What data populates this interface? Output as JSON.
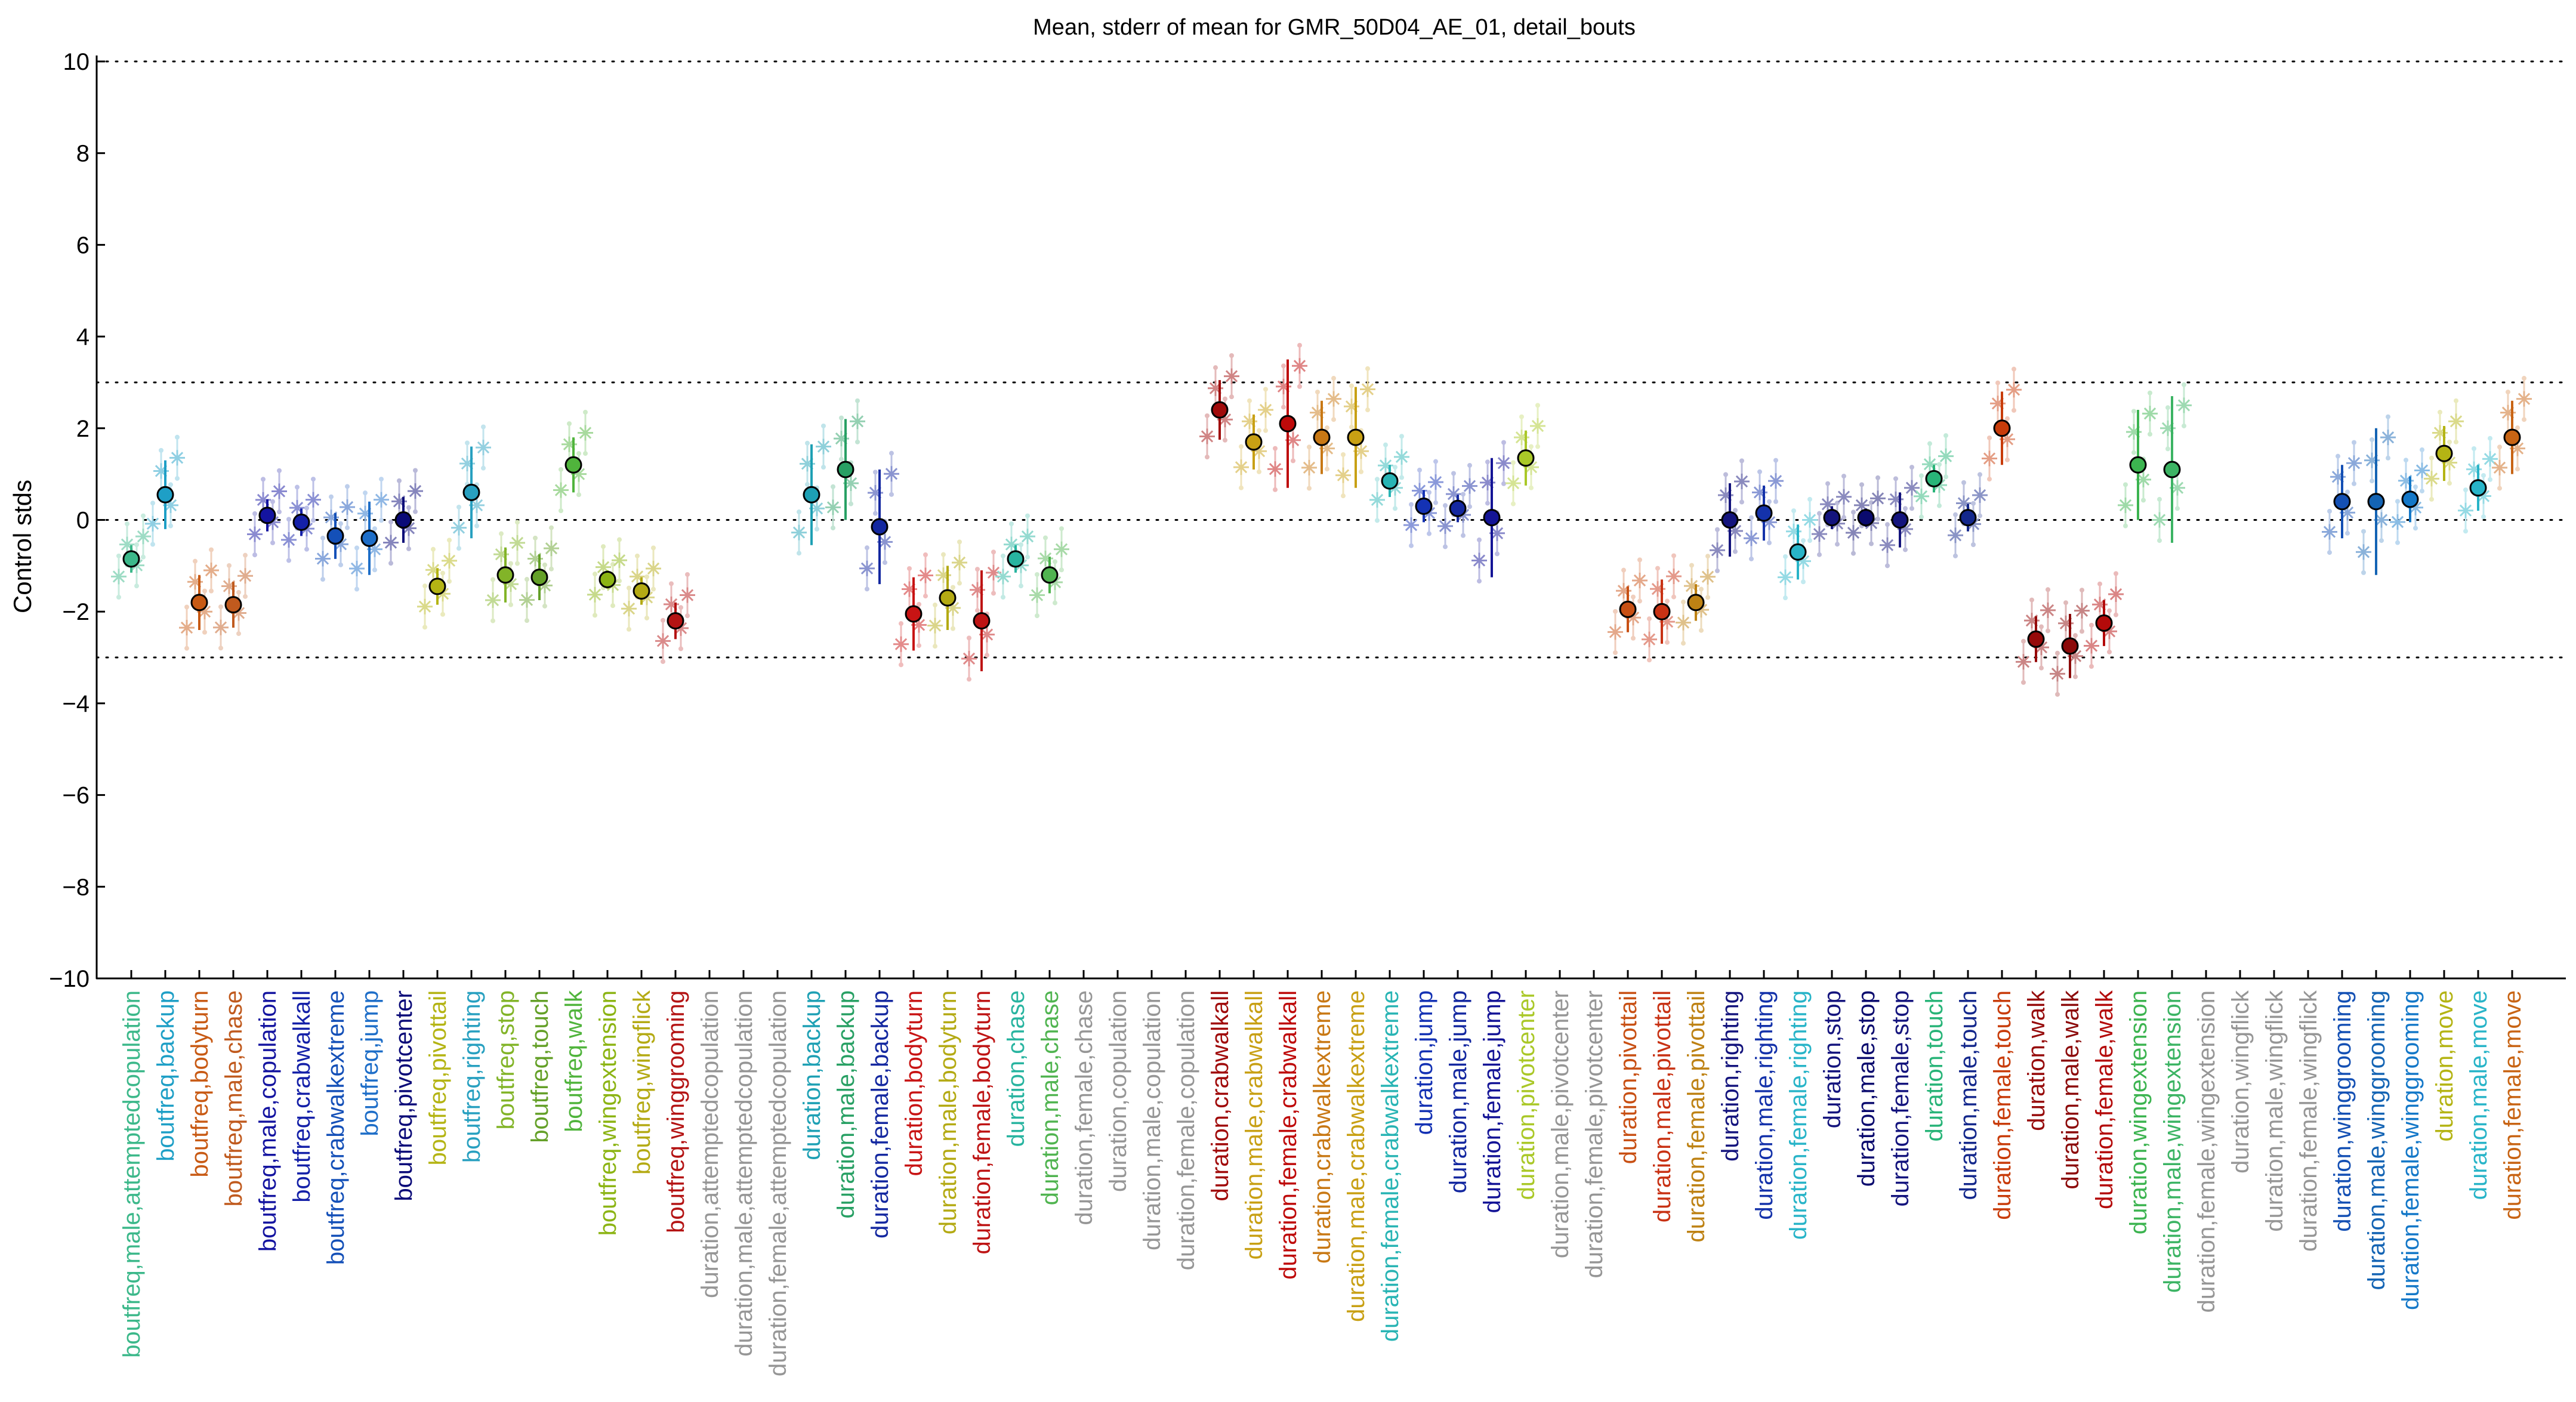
{
  "chart_data": {
    "type": "scatter",
    "title": "Mean, stderr of mean for GMR_50D04_AE_01, detail_bouts",
    "xlabel": "",
    "ylabel": "Control stds",
    "ylim": [
      -10,
      10
    ],
    "yticks": [
      -10,
      -8,
      -6,
      -4,
      -2,
      0,
      2,
      4,
      6,
      8,
      10
    ],
    "reference_lines": [
      10,
      3,
      0,
      -3,
      -10
    ],
    "grid": false,
    "legend": "none",
    "categories": [
      {
        "label": "boutfreq,male,attemptedcopulation",
        "color": "#3cb88a",
        "mean": -0.85,
        "err": 0.3,
        "kind": "main"
      },
      {
        "label": "boutfreq,backup",
        "color": "#1e9fc6",
        "mean": 0.55,
        "err": 0.75,
        "kind": "main"
      },
      {
        "label": "boutfreq,bodyturn",
        "color": "#c85a14",
        "mean": -1.8,
        "err": 0.6,
        "kind": "main"
      },
      {
        "label": "boutfreq,male,chase",
        "color": "#c05a1e",
        "mean": -1.85,
        "err": 0.5,
        "kind": "main"
      },
      {
        "label": "boutfreq,male,copulation",
        "color": "#1414a0",
        "mean": 0.1,
        "err": 0.35,
        "kind": "main"
      },
      {
        "label": "boutfreq,crabwalkall",
        "color": "#1420a8",
        "mean": -0.05,
        "err": 0.3,
        "kind": "main"
      },
      {
        "label": "boutfreq,crabwalkextreme",
        "color": "#1450b8",
        "mean": -0.35,
        "err": 0.5,
        "kind": "main"
      },
      {
        "label": "boutfreq,jump",
        "color": "#1e6ec8",
        "mean": -0.4,
        "err": 0.8,
        "kind": "main"
      },
      {
        "label": "boutfreq,pivotcenter",
        "color": "#0a0a78",
        "mean": 0.0,
        "err": 0.5,
        "kind": "main"
      },
      {
        "label": "boutfreq,pivottail",
        "color": "#b4b414",
        "mean": -1.45,
        "err": 0.4,
        "kind": "main"
      },
      {
        "label": "boutfreq,righting",
        "color": "#28a0c0",
        "mean": 0.6,
        "err": 1.0,
        "kind": "main"
      },
      {
        "label": "boutfreq,stop",
        "color": "#82b428",
        "mean": -1.2,
        "err": 0.6,
        "kind": "main"
      },
      {
        "label": "boutfreq,touch",
        "color": "#64a028",
        "mean": -1.25,
        "err": 0.5,
        "kind": "main"
      },
      {
        "label": "boutfreq,walk",
        "color": "#50b43c",
        "mean": 1.2,
        "err": 0.6,
        "kind": "main"
      },
      {
        "label": "boutfreq,wingextension",
        "color": "#8cb414",
        "mean": -1.3,
        "err": 0.2,
        "kind": "main"
      },
      {
        "label": "boutfreq,wingflick",
        "color": "#b4aa14",
        "mean": -1.55,
        "err": 0.3,
        "kind": "main"
      },
      {
        "label": "boutfreq,winggrooming",
        "color": "#b41414",
        "mean": -2.2,
        "err": 0.4,
        "kind": "main"
      },
      {
        "label": "duration,attemptedcopulation",
        "color": "#969696",
        "mean": null,
        "err": null,
        "kind": "none"
      },
      {
        "label": "duration,male,attemptedcopulation",
        "color": "#969696",
        "mean": null,
        "err": null,
        "kind": "none"
      },
      {
        "label": "duration,female,attemptedcopulation",
        "color": "#969696",
        "mean": null,
        "err": null,
        "kind": "none"
      },
      {
        "label": "duration,backup",
        "color": "#1ea0b4",
        "mean": 0.55,
        "err": 1.1,
        "kind": "main"
      },
      {
        "label": "duration,male,backup",
        "color": "#28a064",
        "mean": 1.1,
        "err": 1.1,
        "kind": "main"
      },
      {
        "label": "duration,female,backup",
        "color": "#1428a0",
        "mean": -0.15,
        "err": 1.25,
        "kind": "main"
      },
      {
        "label": "duration,bodyturn",
        "color": "#c81414",
        "mean": -2.05,
        "err": 0.8,
        "kind": "main"
      },
      {
        "label": "duration,male,bodyturn",
        "color": "#b4aa14",
        "mean": -1.7,
        "err": 0.7,
        "kind": "main"
      },
      {
        "label": "duration,female,bodyturn",
        "color": "#be1414",
        "mean": -2.2,
        "err": 1.1,
        "kind": "main"
      },
      {
        "label": "duration,chase",
        "color": "#28b4a0",
        "mean": -0.85,
        "err": 0.3,
        "kind": "main"
      },
      {
        "label": "duration,male,chase",
        "color": "#50b450",
        "mean": -1.2,
        "err": 0.4,
        "kind": "main"
      },
      {
        "label": "duration,female,chase",
        "color": "#969696",
        "mean": null,
        "err": null,
        "kind": "none"
      },
      {
        "label": "duration,copulation",
        "color": "#969696",
        "mean": null,
        "err": null,
        "kind": "none"
      },
      {
        "label": "duration,male,copulation",
        "color": "#969696",
        "mean": null,
        "err": null,
        "kind": "none"
      },
      {
        "label": "duration,female,copulation",
        "color": "#969696",
        "mean": null,
        "err": null,
        "kind": "none"
      },
      {
        "label": "duration,crabwalkall",
        "color": "#a00a0a",
        "mean": 2.4,
        "err": 0.65,
        "kind": "main"
      },
      {
        "label": "duration,male,crabwalkall",
        "color": "#c8a014",
        "mean": 1.7,
        "err": 0.6,
        "kind": "main"
      },
      {
        "label": "duration,female,crabwalkall",
        "color": "#be0a0a",
        "mean": 2.1,
        "err": 1.4,
        "kind": "main"
      },
      {
        "label": "duration,crabwalkextreme",
        "color": "#c87814",
        "mean": 1.8,
        "err": 0.8,
        "kind": "main"
      },
      {
        "label": "duration,male,crabwalkextreme",
        "color": "#c8a014",
        "mean": 1.8,
        "err": 1.1,
        "kind": "main"
      },
      {
        "label": "duration,female,crabwalkextreme",
        "color": "#28b4b4",
        "mean": 0.85,
        "err": 0.35,
        "kind": "main"
      },
      {
        "label": "duration,jump",
        "color": "#1432b4",
        "mean": 0.3,
        "err": 0.35,
        "kind": "main"
      },
      {
        "label": "duration,male,jump",
        "color": "#1428a0",
        "mean": 0.25,
        "err": 0.3,
        "kind": "main"
      },
      {
        "label": "duration,female,jump",
        "color": "#141496",
        "mean": 0.05,
        "err": 1.3,
        "kind": "main"
      },
      {
        "label": "duration,pivotcenter",
        "color": "#aac828",
        "mean": 1.35,
        "err": 0.6,
        "kind": "main"
      },
      {
        "label": "duration,male,pivotcenter",
        "color": "#969696",
        "mean": null,
        "err": null,
        "kind": "none"
      },
      {
        "label": "duration,female,pivotcenter",
        "color": "#969696",
        "mean": null,
        "err": null,
        "kind": "none"
      },
      {
        "label": "duration,pivottail",
        "color": "#c85014",
        "mean": -1.95,
        "err": 0.5,
        "kind": "main"
      },
      {
        "label": "duration,male,pivottail",
        "color": "#c83214",
        "mean": -2.0,
        "err": 0.7,
        "kind": "main"
      },
      {
        "label": "duration,female,pivottail",
        "color": "#be8214",
        "mean": -1.8,
        "err": 0.4,
        "kind": "main"
      },
      {
        "label": "duration,righting",
        "color": "#14147d",
        "mean": 0.0,
        "err": 0.8,
        "kind": "main"
      },
      {
        "label": "duration,male,righting",
        "color": "#1432aa",
        "mean": 0.15,
        "err": 0.6,
        "kind": "main"
      },
      {
        "label": "duration,female,righting",
        "color": "#28b4c8",
        "mean": -0.7,
        "err": 0.6,
        "kind": "main"
      },
      {
        "label": "duration,stop",
        "color": "#14147d",
        "mean": 0.05,
        "err": 0.25,
        "kind": "main"
      },
      {
        "label": "duration,male,stop",
        "color": "#0a0a6e",
        "mean": 0.05,
        "err": 0.2,
        "kind": "main"
      },
      {
        "label": "duration,female,stop",
        "color": "#14147d",
        "mean": 0.0,
        "err": 0.6,
        "kind": "main"
      },
      {
        "label": "duration,touch",
        "color": "#28b478",
        "mean": 0.9,
        "err": 0.3,
        "kind": "main"
      },
      {
        "label": "duration,male,touch",
        "color": "#14288c",
        "mean": 0.05,
        "err": 0.3,
        "kind": "main"
      },
      {
        "label": "duration,female,touch",
        "color": "#c83c0a",
        "mean": 2.0,
        "err": 0.8,
        "kind": "main"
      },
      {
        "label": "duration,walk",
        "color": "#960a0a",
        "mean": -2.6,
        "err": 0.5,
        "kind": "main"
      },
      {
        "label": "duration,male,walk",
        "color": "#8c0a0a",
        "mean": -2.75,
        "err": 0.7,
        "kind": "main"
      },
      {
        "label": "duration,female,walk",
        "color": "#b40a0a",
        "mean": -2.25,
        "err": 0.5,
        "kind": "main"
      },
      {
        "label": "duration,wingextension",
        "color": "#3cb450",
        "mean": 1.2,
        "err": 1.2,
        "kind": "main"
      },
      {
        "label": "duration,male,wingextension",
        "color": "#3cb464",
        "mean": 1.1,
        "err": 1.6,
        "kind": "main"
      },
      {
        "label": "duration,female,wingextension",
        "color": "#969696",
        "mean": null,
        "err": null,
        "kind": "none"
      },
      {
        "label": "duration,wingflick",
        "color": "#969696",
        "mean": null,
        "err": null,
        "kind": "none"
      },
      {
        "label": "duration,male,wingflick",
        "color": "#969696",
        "mean": null,
        "err": null,
        "kind": "none"
      },
      {
        "label": "duration,female,wingflick",
        "color": "#969696",
        "mean": null,
        "err": null,
        "kind": "none"
      },
      {
        "label": "duration,winggrooming",
        "color": "#1450b4",
        "mean": 0.4,
        "err": 0.8,
        "kind": "main"
      },
      {
        "label": "duration,male,winggrooming",
        "color": "#1464b4",
        "mean": 0.4,
        "err": 1.6,
        "kind": "main"
      },
      {
        "label": "duration,female,winggrooming",
        "color": "#1478c8",
        "mean": 0.45,
        "err": 0.5,
        "kind": "main"
      },
      {
        "label": "duration,move",
        "color": "#b4b414",
        "mean": 1.45,
        "err": 0.6,
        "kind": "main"
      },
      {
        "label": "duration,male,move",
        "color": "#28b4c8",
        "mean": 0.7,
        "err": 0.5,
        "kind": "main"
      },
      {
        "label": "duration,female,move",
        "color": "#c86414",
        "mean": 1.8,
        "err": 0.8,
        "kind": "main"
      }
    ]
  }
}
